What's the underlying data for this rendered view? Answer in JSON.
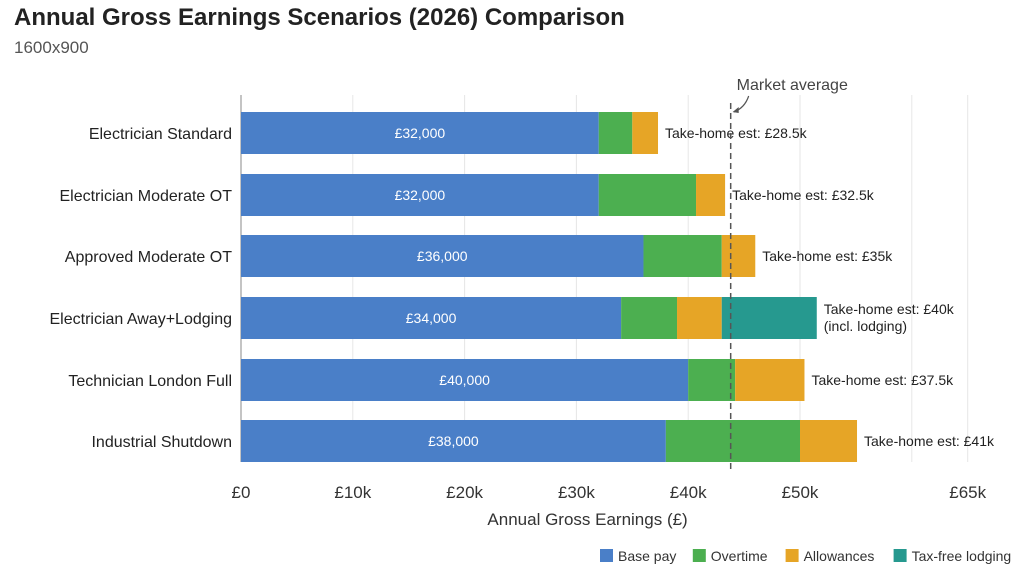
{
  "header": {
    "title": "Annual Gross Earnings Scenarios (2026) Comparison",
    "subtitle": "1600x900"
  },
  "chart_data": {
    "type": "bar",
    "orientation": "horizontal",
    "stacked": true,
    "title": "Annual Gross Earnings Scenarios (2026) Comparison",
    "xlabel": "Annual Gross Earnings (£)",
    "ylabel": "",
    "xlim": [
      0,
      65000
    ],
    "grid": true,
    "legend_position": "bottom-right",
    "x_ticks": [
      {
        "value": 0,
        "label": "£0"
      },
      {
        "value": 10000,
        "label": "£10k"
      },
      {
        "value": 20000,
        "label": "£20k"
      },
      {
        "value": 30000,
        "label": "£30k"
      },
      {
        "value": 40000,
        "label": "£40k"
      },
      {
        "value": 50000,
        "label": "£50k"
      },
      {
        "value": 65000,
        "label": "£65k"
      }
    ],
    "categories": [
      "Electrician Standard",
      "Electrician Moderate OT",
      "Approved Moderate OT",
      "Electrician Away+Lodging",
      "Technician London Full",
      "Industrial Shutdown"
    ],
    "series": [
      {
        "name": "Base pay",
        "color": "#4a7fc8",
        "values": [
          32000,
          32000,
          36000,
          34000,
          40000,
          38000
        ]
      },
      {
        "name": "Overtime",
        "color": "#4caf50",
        "values": [
          3000,
          8700,
          7000,
          5000,
          4200,
          12000
        ]
      },
      {
        "name": "Allowances",
        "color": "#e6a526",
        "values": [
          2300,
          2600,
          3000,
          4000,
          6200,
          5100
        ]
      },
      {
        "name": "Tax-free lodging",
        "color": "#26998f",
        "values": [
          0,
          0,
          0,
          8500,
          0,
          0
        ]
      }
    ],
    "base_labels": [
      "£32,000",
      "£32,000",
      "£36,000",
      "£34,000",
      "£40,000",
      "£38,000"
    ],
    "annotations": [
      "Take-home est: £28.5k",
      "Take-home est: £32.5k",
      "Take-home est: £35k",
      "Take-home est: £40k\n(incl. lodging)",
      "Take-home est: £37.5k",
      "Take-home est: £41k"
    ],
    "reference_line": {
      "label": "Market average",
      "value": 43800
    }
  }
}
